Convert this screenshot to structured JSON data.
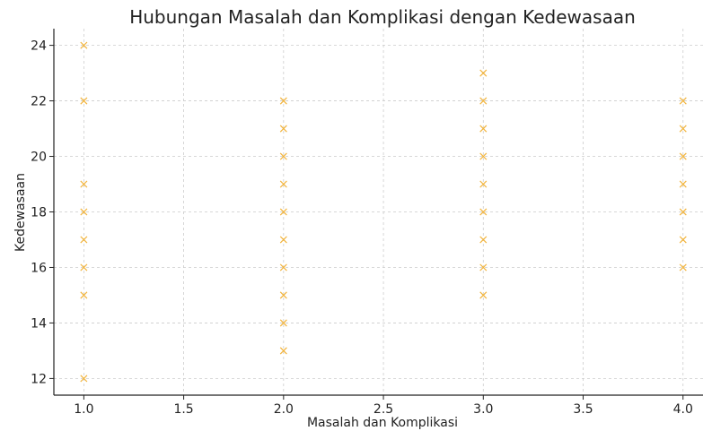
{
  "chart_data": {
    "type": "scatter",
    "title": "Hubungan Masalah dan Komplikasi dengan Kedewasaan",
    "xlabel": "Masalah dan Komplikasi",
    "ylabel": "Kedewasaan",
    "xlim": [
      0.85,
      4.1
    ],
    "ylim": [
      11.4,
      24.6
    ],
    "xticks": [
      1.0,
      1.5,
      2.0,
      2.5,
      3.0,
      3.5,
      4.0
    ],
    "xtick_labels": [
      "1.0",
      "1.5",
      "2.0",
      "2.5",
      "3.0",
      "3.5",
      "4.0"
    ],
    "yticks": [
      12,
      14,
      16,
      18,
      20,
      22,
      24
    ],
    "ytick_labels": [
      "12",
      "14",
      "16",
      "18",
      "20",
      "22",
      "24"
    ],
    "grid": true,
    "marker": "x",
    "color": "#f2b43c",
    "points": [
      {
        "x": 1,
        "y": 24
      },
      {
        "x": 1,
        "y": 22
      },
      {
        "x": 1,
        "y": 19
      },
      {
        "x": 1,
        "y": 18
      },
      {
        "x": 1,
        "y": 17
      },
      {
        "x": 1,
        "y": 16
      },
      {
        "x": 1,
        "y": 15
      },
      {
        "x": 1,
        "y": 12
      },
      {
        "x": 2,
        "y": 22
      },
      {
        "x": 2,
        "y": 21
      },
      {
        "x": 2,
        "y": 20
      },
      {
        "x": 2,
        "y": 19
      },
      {
        "x": 2,
        "y": 18
      },
      {
        "x": 2,
        "y": 17
      },
      {
        "x": 2,
        "y": 16
      },
      {
        "x": 2,
        "y": 15
      },
      {
        "x": 2,
        "y": 14
      },
      {
        "x": 2,
        "y": 13
      },
      {
        "x": 3,
        "y": 23
      },
      {
        "x": 3,
        "y": 22
      },
      {
        "x": 3,
        "y": 21
      },
      {
        "x": 3,
        "y": 20
      },
      {
        "x": 3,
        "y": 19
      },
      {
        "x": 3,
        "y": 18
      },
      {
        "x": 3,
        "y": 17
      },
      {
        "x": 3,
        "y": 16
      },
      {
        "x": 3,
        "y": 15
      },
      {
        "x": 4,
        "y": 22
      },
      {
        "x": 4,
        "y": 21
      },
      {
        "x": 4,
        "y": 20
      },
      {
        "x": 4,
        "y": 19
      },
      {
        "x": 4,
        "y": 18
      },
      {
        "x": 4,
        "y": 17
      },
      {
        "x": 4,
        "y": 16
      }
    ]
  }
}
